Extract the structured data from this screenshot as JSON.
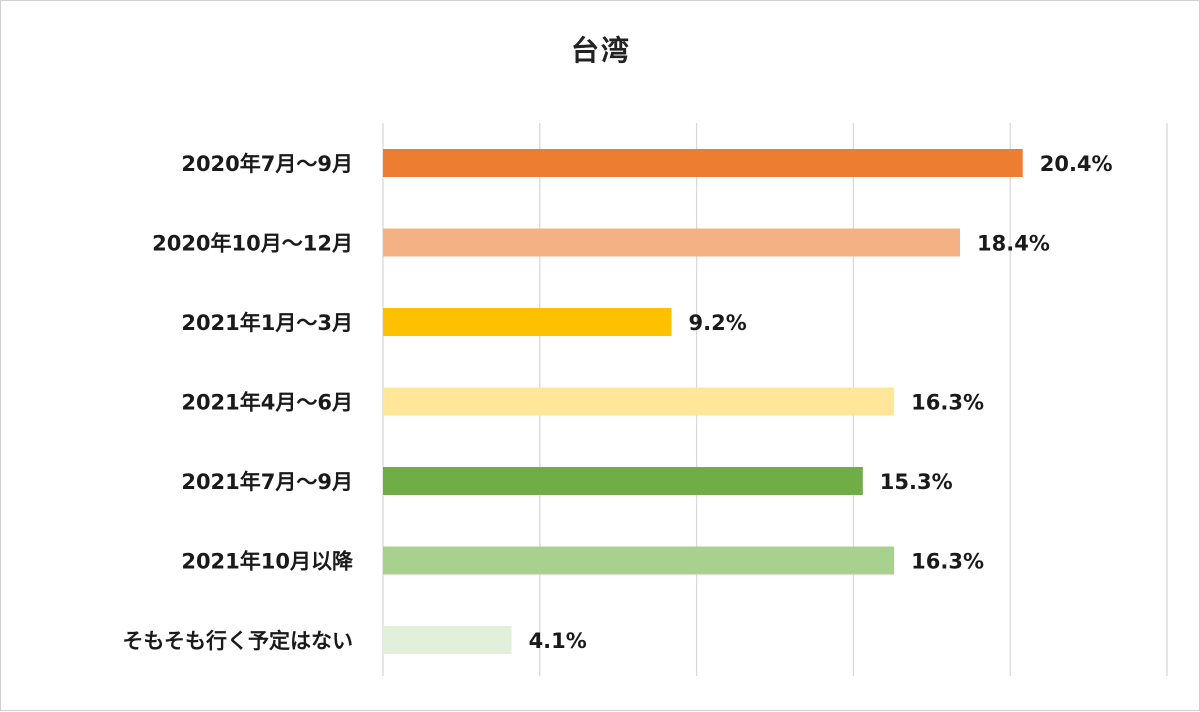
{
  "chart_data": {
    "type": "bar",
    "orientation": "horizontal",
    "title": "台湾",
    "categories": [
      "2020年7月～9月",
      "2020年10月～12月",
      "2021年1月～3月",
      "2021年4月～6月",
      "2021年7月～9月",
      "2021年10月以降",
      "そもそも行く予定はない"
    ],
    "values": [
      20.4,
      18.4,
      9.2,
      16.3,
      15.3,
      16.3,
      4.1
    ],
    "value_labels": [
      "20.4%",
      "18.4%",
      "9.2%",
      "16.3%",
      "15.3%",
      "16.3%",
      "4.1%"
    ],
    "colors": [
      "#ED7D31",
      "#F4B183",
      "#FFC000",
      "#FFE699",
      "#70AD47",
      "#A9D18E",
      "#E2EFDA"
    ],
    "xlim": [
      0,
      25
    ],
    "gridlines": true,
    "legend": "none"
  }
}
